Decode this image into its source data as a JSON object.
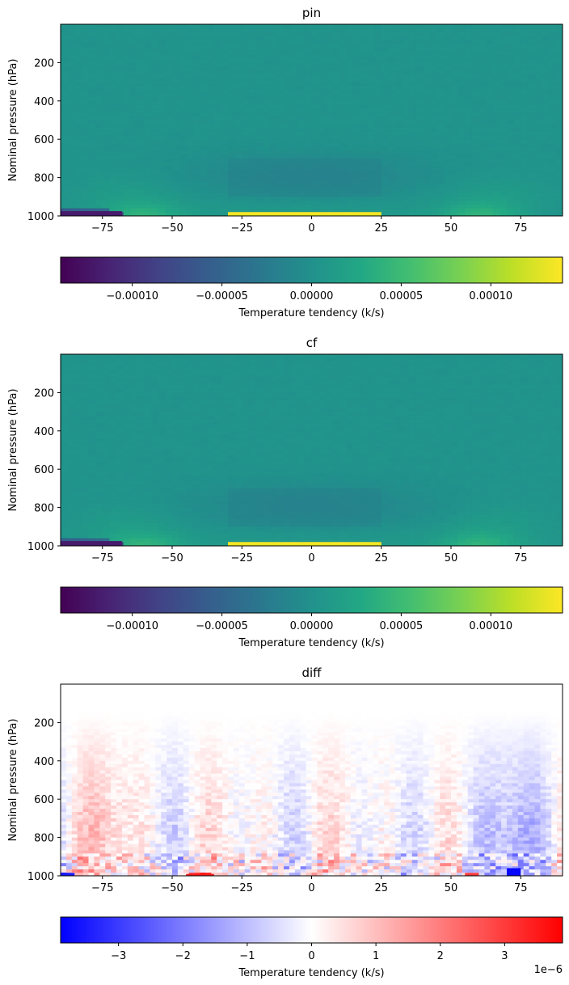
{
  "chart_data": [
    {
      "type": "heatmap",
      "title": "pin",
      "xlabel": "",
      "ylabel": "Nominal pressure (hPa)",
      "xlim": [
        -90,
        90
      ],
      "ylim": [
        1000,
        0
      ],
      "xticks": [
        -75,
        -50,
        -25,
        0,
        25,
        50,
        75
      ],
      "yticks": [
        200,
        400,
        600,
        800,
        1000
      ],
      "colormap": "viridis",
      "colorbar": {
        "label": "Temperature tendency (k/s)",
        "range": [
          -0.00014,
          0.00014
        ],
        "ticks": [
          "−0.00010",
          "−0.00005",
          "0.00000",
          "0.00005",
          "0.00010"
        ],
        "tick_values": [
          -0.0001,
          -5e-05,
          0,
          5e-05,
          0.0001
        ],
        "offset_text": ""
      },
      "features": [
        {
          "lat_range": [
            -90,
            -68
          ],
          "pressure_range": [
            975,
            1000
          ],
          "value": -0.00012
        },
        {
          "lat_range": [
            -30,
            25
          ],
          "pressure_range": [
            990,
            1000
          ],
          "value": 0.00013
        },
        {
          "lat_range": [
            -30,
            25
          ],
          "pressure_range": [
            700,
            900
          ],
          "value": -2e-05
        }
      ]
    },
    {
      "type": "heatmap",
      "title": "cf",
      "xlabel": "",
      "ylabel": "Nominal pressure (hPa)",
      "xlim": [
        -90,
        90
      ],
      "ylim": [
        1000,
        0
      ],
      "xticks": [
        -75,
        -50,
        -25,
        0,
        25,
        50,
        75
      ],
      "yticks": [
        200,
        400,
        600,
        800,
        1000
      ],
      "colormap": "viridis",
      "colorbar": {
        "label": "Temperature tendency (k/s)",
        "range": [
          -0.00014,
          0.00014
        ],
        "ticks": [
          "−0.00010",
          "−0.00005",
          "0.00000",
          "0.00005",
          "0.00010"
        ],
        "tick_values": [
          -0.0001,
          -5e-05,
          0,
          5e-05,
          0.0001
        ],
        "offset_text": ""
      },
      "features": [
        {
          "lat_range": [
            -90,
            -68
          ],
          "pressure_range": [
            975,
            1000
          ],
          "value": -0.00012
        },
        {
          "lat_range": [
            -30,
            25
          ],
          "pressure_range": [
            990,
            1000
          ],
          "value": 0.00013
        },
        {
          "lat_range": [
            -30,
            25
          ],
          "pressure_range": [
            700,
            900
          ],
          "value": -2e-05
        }
      ]
    },
    {
      "type": "heatmap",
      "title": "diff",
      "xlabel": "",
      "ylabel": "Nominal pressure (hPa)",
      "xlim": [
        -90,
        90
      ],
      "ylim": [
        1000,
        0
      ],
      "xticks": [
        -75,
        -50,
        -25,
        0,
        25,
        50,
        75
      ],
      "yticks": [
        200,
        400,
        600,
        800,
        1000
      ],
      "colormap": "bwr",
      "colorbar": {
        "label": "Temperature tendency (k/s)",
        "range": [
          -3.9e-06,
          3.9e-06
        ],
        "ticks": [
          "−3",
          "−2",
          "−1",
          "0",
          "1",
          "2",
          "3"
        ],
        "tick_values": [
          -3e-06,
          -2e-06,
          -1e-06,
          0,
          1e-06,
          2e-06,
          3e-06
        ],
        "offset_text": "1e−6"
      },
      "features": [
        {
          "lat_range": [
            -90,
            -85
          ],
          "pressure_range": [
            985,
            1000
          ],
          "value": -3.5e-06
        },
        {
          "lat_range": [
            -45,
            -35
          ],
          "pressure_range": [
            990,
            1000
          ],
          "value": 3.5e-06
        },
        {
          "lat_range": [
            70,
            75
          ],
          "pressure_range": [
            960,
            1000
          ],
          "value": -3.8e-06
        },
        {
          "lat_range": [
            55,
            60
          ],
          "pressure_range": [
            985,
            1000
          ],
          "value": 3e-06
        }
      ]
    }
  ]
}
